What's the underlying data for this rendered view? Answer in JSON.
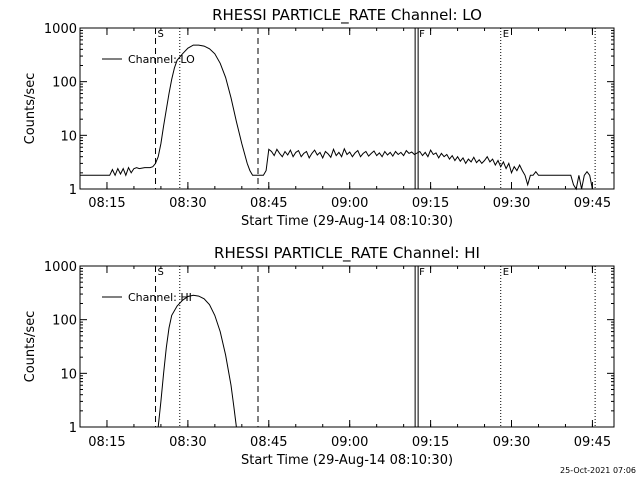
{
  "footer_timestamp": "25-Oct-2021 07:06",
  "chart_data": [
    {
      "type": "line",
      "title": "RHESSI PARTICLE_RATE Channel: LO",
      "xlabel": "Start Time (29-Aug-14 08:10:30)",
      "ylabel": "Counts/sec",
      "yscale": "log",
      "ylim": [
        1,
        1000
      ],
      "xlim": [
        "08:10",
        "09:49"
      ],
      "x_ticks": [
        "08:15",
        "08:30",
        "08:45",
        "09:00",
        "09:15",
        "09:30",
        "09:45"
      ],
      "y_ticks": [
        "1",
        "10",
        "100",
        "1000"
      ],
      "legend": [
        "Channel: LO"
      ],
      "legend_position": "top-left",
      "markers": [
        {
          "label": "S",
          "time": "08:24",
          "style": "dashed"
        },
        {
          "label": "",
          "time": "08:28.5",
          "style": "dotted"
        },
        {
          "label": "",
          "time": "08:43",
          "style": "dashed"
        },
        {
          "label": "F",
          "time": "09:12.5",
          "style": "solid-double"
        },
        {
          "label": "E",
          "time": "09:28",
          "style": "dotted"
        },
        {
          "label": "",
          "time": "09:45.5",
          "style": "dotted"
        }
      ],
      "series": [
        {
          "name": "Channel: LO",
          "points": [
            [
              "08:10",
              1.8
            ],
            [
              "08:15.5",
              1.8
            ],
            [
              "08:16",
              2.3
            ],
            [
              "08:16.5",
              1.8
            ],
            [
              "08:17",
              2.4
            ],
            [
              "08:17.5",
              1.9
            ],
            [
              "08:18",
              2.4
            ],
            [
              "08:18.5",
              1.8
            ],
            [
              "08:19",
              2.5
            ],
            [
              "08:19.5",
              2.0
            ],
            [
              "08:20",
              2.4
            ],
            [
              "08:20.5",
              2.5
            ],
            [
              "08:21",
              2.4
            ],
            [
              "08:22",
              2.5
            ],
            [
              "08:23",
              2.5
            ],
            [
              "08:23.5",
              2.6
            ],
            [
              "08:24",
              3.0
            ],
            [
              "08:24.5",
              4.0
            ],
            [
              "08:25",
              7
            ],
            [
              "08:25.5",
              15
            ],
            [
              "08:26",
              30
            ],
            [
              "08:26.5",
              60
            ],
            [
              "08:27",
              110
            ],
            [
              "08:27.5",
              180
            ],
            [
              "08:28",
              250
            ],
            [
              "08:29",
              330
            ],
            [
              "08:30",
              420
            ],
            [
              "08:31",
              480
            ],
            [
              "08:32",
              480
            ],
            [
              "08:33",
              460
            ],
            [
              "08:34",
              410
            ],
            [
              "08:35",
              330
            ],
            [
              "08:36",
              220
            ],
            [
              "08:37",
              120
            ],
            [
              "08:38",
              50
            ],
            [
              "08:39",
              18
            ],
            [
              "08:40",
              7
            ],
            [
              "08:41",
              3
            ],
            [
              "08:41.5",
              2.2
            ],
            [
              "08:42",
              1.8
            ],
            [
              "08:43",
              1.8
            ],
            [
              "08:44",
              1.8
            ],
            [
              "08:44.5",
              2.2
            ],
            [
              "08:45",
              5.5
            ],
            [
              "08:45.5",
              5.0
            ],
            [
              "08:46",
              4.2
            ],
            [
              "08:46.5",
              5.5
            ],
            [
              "08:47",
              4.6
            ],
            [
              "08:47.5",
              4.0
            ],
            [
              "08:48",
              5.0
            ],
            [
              "08:48.5",
              4.3
            ],
            [
              "08:49",
              5.3
            ],
            [
              "08:49.5",
              4.0
            ],
            [
              "08:50",
              4.8
            ],
            [
              "08:50.5",
              5.2
            ],
            [
              "08:51",
              4.0
            ],
            [
              "08:51.5",
              4.6
            ],
            [
              "08:52",
              5.0
            ],
            [
              "08:52.5",
              3.8
            ],
            [
              "08:53",
              4.6
            ],
            [
              "08:53.5",
              5.3
            ],
            [
              "08:54",
              4.3
            ],
            [
              "08:54.5",
              4.8
            ],
            [
              "08:55",
              3.8
            ],
            [
              "08:55.5",
              5.0
            ],
            [
              "08:56",
              4.5
            ],
            [
              "08:56.5",
              3.9
            ],
            [
              "08:57",
              5.5
            ],
            [
              "08:57.5",
              4.2
            ],
            [
              "08:58",
              4.8
            ],
            [
              "08:58.5",
              4.0
            ],
            [
              "08:59",
              5.6
            ],
            [
              "08:59.5",
              4.4
            ],
            [
              "09:00",
              4.9
            ],
            [
              "09:00.5",
              4.0
            ],
            [
              "09:01",
              4.7
            ],
            [
              "09:01.5",
              5.2
            ],
            [
              "09:02",
              4.0
            ],
            [
              "09:02.5",
              4.6
            ],
            [
              "09:03",
              5.0
            ],
            [
              "09:03.5",
              4.1
            ],
            [
              "09:04",
              4.6
            ],
            [
              "09:04.5",
              5.1
            ],
            [
              "09:05",
              4.2
            ],
            [
              "09:05.5",
              4.7
            ],
            [
              "09:06",
              4.0
            ],
            [
              "09:06.5",
              5.0
            ],
            [
              "09:07",
              4.3
            ],
            [
              "09:07.5",
              4.8
            ],
            [
              "09:08",
              4.1
            ],
            [
              "09:08.5",
              5.0
            ],
            [
              "09:09",
              4.4
            ],
            [
              "09:09.5",
              4.8
            ],
            [
              "09:10",
              4.2
            ],
            [
              "09:10.5",
              5.2
            ],
            [
              "09:11",
              4.6
            ],
            [
              "09:11.5",
              4.9
            ],
            [
              "09:12",
              4.4
            ],
            [
              "09:13",
              5.0
            ],
            [
              "09:13.5",
              4.2
            ],
            [
              "09:14",
              4.8
            ],
            [
              "09:14.5",
              4.0
            ],
            [
              "09:15",
              5.3
            ],
            [
              "09:15.5",
              4.4
            ],
            [
              "09:16",
              4.7
            ],
            [
              "09:16.5",
              3.8
            ],
            [
              "09:17",
              4.6
            ],
            [
              "09:17.5",
              4.0
            ],
            [
              "09:18",
              4.4
            ],
            [
              "09:18.5",
              3.6
            ],
            [
              "09:19",
              4.2
            ],
            [
              "09:19.5",
              3.4
            ],
            [
              "09:20",
              4.0
            ],
            [
              "09:20.5",
              3.3
            ],
            [
              "09:21",
              3.8
            ],
            [
              "09:21.5",
              3.0
            ],
            [
              "09:22",
              3.6
            ],
            [
              "09:22.5",
              3.2
            ],
            [
              "09:23",
              3.9
            ],
            [
              "09:23.5",
              3.1
            ],
            [
              "09:24",
              3.5
            ],
            [
              "09:24.5",
              3.0
            ],
            [
              "09:25",
              3.4
            ],
            [
              "09:25.5",
              4.0
            ],
            [
              "09:26",
              3.2
            ],
            [
              "09:26.5",
              3.6
            ],
            [
              "09:27",
              2.8
            ],
            [
              "09:27.5",
              3.4
            ],
            [
              "09:28",
              2.6
            ],
            [
              "09:28.5",
              3.2
            ],
            [
              "09:29",
              2.4
            ],
            [
              "09:29.5",
              3.0
            ],
            [
              "09:30",
              2.0
            ],
            [
              "09:30.5",
              2.6
            ],
            [
              "09:31",
              2.2
            ],
            [
              "09:31.5",
              2.8
            ],
            [
              "09:32",
              2.2
            ],
            [
              "09:32.5",
              1.8
            ],
            [
              "09:33",
              1.2
            ],
            [
              "09:33.5",
              1.8
            ],
            [
              "09:34",
              1.8
            ],
            [
              "09:34.5",
              2.1
            ],
            [
              "09:35",
              1.8
            ],
            [
              "09:36",
              1.8
            ],
            [
              "09:37",
              1.8
            ],
            [
              "09:38",
              1.8
            ],
            [
              "09:39",
              1.8
            ],
            [
              "09:40",
              1.8
            ],
            [
              "09:41",
              1.8
            ],
            [
              "09:41.5",
              1.2
            ],
            [
              "09:42",
              1.0
            ],
            [
              "09:42.5",
              1.8
            ],
            [
              "09:43",
              1.0
            ],
            [
              "09:43.5",
              1.8
            ],
            [
              "09:44",
              2.1
            ],
            [
              "09:44.5",
              1.8
            ],
            [
              "09:45",
              1.0
            ]
          ]
        }
      ]
    },
    {
      "type": "line",
      "title": "RHESSI PARTICLE_RATE Channel: HI",
      "xlabel": "Start Time (29-Aug-14 08:10:30)",
      "ylabel": "Counts/sec",
      "yscale": "log",
      "ylim": [
        1,
        1000
      ],
      "xlim": [
        "08:10",
        "09:49"
      ],
      "x_ticks": [
        "08:15",
        "08:30",
        "08:45",
        "09:00",
        "09:15",
        "09:30",
        "09:45"
      ],
      "y_ticks": [
        "1",
        "10",
        "100",
        "1000"
      ],
      "legend": [
        "Channel: HI"
      ],
      "legend_position": "top-left",
      "markers": [
        {
          "label": "S",
          "time": "08:24",
          "style": "dashed"
        },
        {
          "label": "",
          "time": "08:28.5",
          "style": "dotted"
        },
        {
          "label": "",
          "time": "08:43",
          "style": "dashed"
        },
        {
          "label": "F",
          "time": "09:12.5",
          "style": "solid-double"
        },
        {
          "label": "E",
          "time": "09:28",
          "style": "dotted"
        },
        {
          "label": "",
          "time": "09:45.5",
          "style": "dotted"
        }
      ],
      "series": [
        {
          "name": "Channel: HI",
          "points": [
            [
              "08:24.5",
              1.0
            ],
            [
              "08:25",
              3
            ],
            [
              "08:25.5",
              10
            ],
            [
              "08:26",
              30
            ],
            [
              "08:26.5",
              70
            ],
            [
              "08:27",
              120
            ],
            [
              "08:28",
              180
            ],
            [
              "08:29",
              230
            ],
            [
              "08:30",
              270
            ],
            [
              "08:31",
              285
            ],
            [
              "08:32",
              275
            ],
            [
              "08:33",
              245
            ],
            [
              "08:34",
              190
            ],
            [
              "08:35",
              120
            ],
            [
              "08:36",
              60
            ],
            [
              "08:37",
              22
            ],
            [
              "08:38",
              6
            ],
            [
              "08:38.5",
              2.5
            ],
            [
              "08:39",
              1.0
            ]
          ]
        }
      ]
    }
  ]
}
